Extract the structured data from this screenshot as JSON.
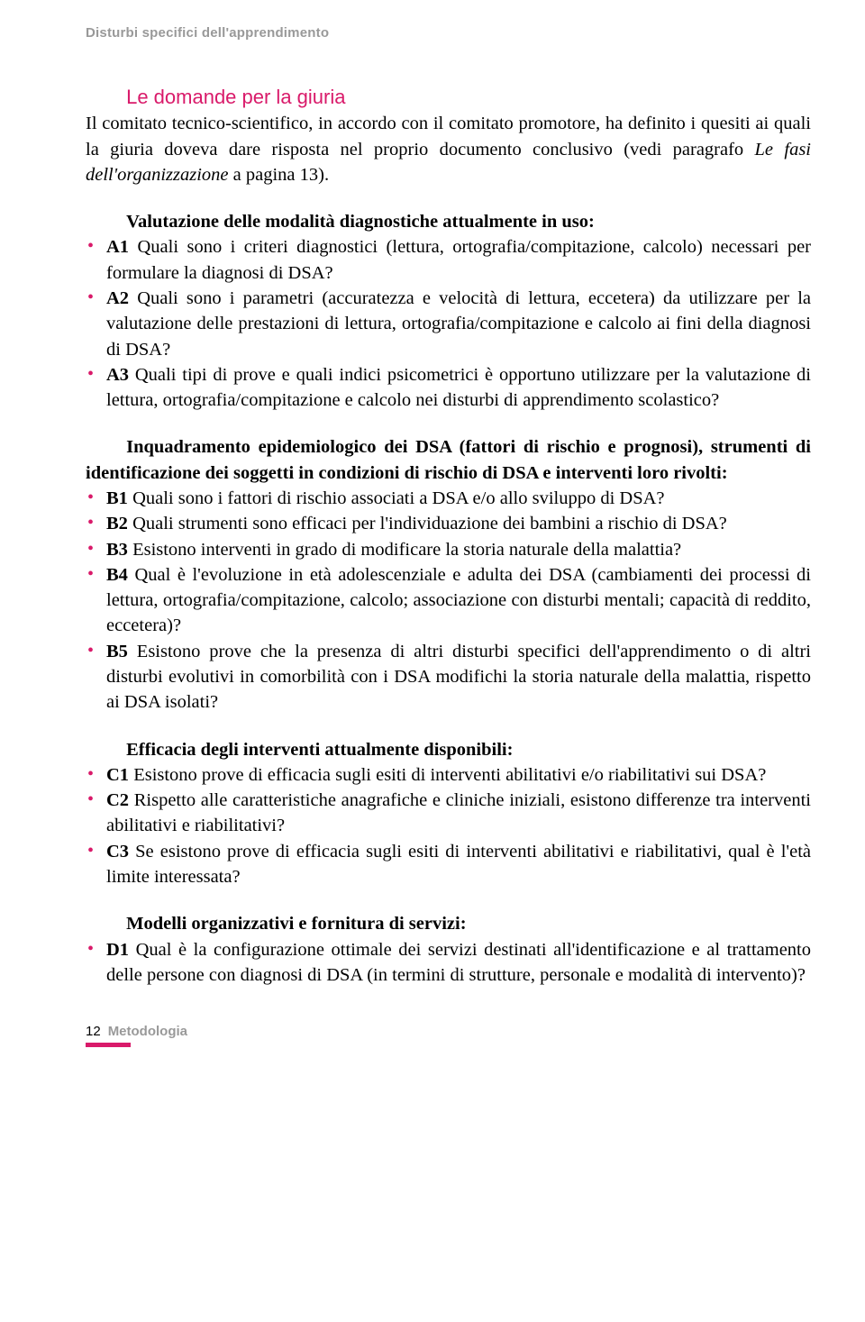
{
  "colors": {
    "accent": "#d91a6a",
    "muted": "#999999",
    "text": "#000000",
    "background": "#ffffff"
  },
  "typography": {
    "body_font": "Adobe Caslon Pro, Caslon, Georgia, serif",
    "heading_font": "Helvetica Neue, Arial, sans-serif",
    "body_size_pt": 15,
    "heading_size_pt": 16,
    "line_height": 1.38
  },
  "header": {
    "running_title": "Disturbi specifici dell'apprendimento"
  },
  "section": {
    "title": "Le domande per la giuria",
    "intro_part1": "Il comitato tecnico-scientifico, in accordo con il comitato promotore, ha definito i quesiti ai quali la giuria doveva dare risposta nel proprio documento conclusivo (vedi paragrafo ",
    "intro_italic": "Le fasi dell'organizzazione",
    "intro_part2": " a pagina 13)."
  },
  "groups": [
    {
      "lead": "Valutazione delle modalità diagnostiche attualmente in uso:",
      "lead_bold": true,
      "items": [
        {
          "code": "A1",
          "text": " Quali sono i criteri diagnostici (lettura, ortografia/compitazione, calcolo) necessari per formulare la diagnosi di DSA?"
        },
        {
          "code": "A2",
          "text": " Quali sono i parametri (accuratezza e velocità di lettura, eccetera) da utilizzare per la valutazione delle prestazioni di lettura, ortografia/compitazione e calcolo ai fini della diagnosi di DSA?"
        },
        {
          "code": "A3",
          "text": " Quali tipi di prove e quali indici psicometrici è opportuno utilizzare per la valutazione di lettura, ortografia/compitazione e calcolo nei disturbi di apprendimento scolastico?"
        }
      ]
    },
    {
      "lead": "Inquadramento epidemiologico dei DSA (fattori di rischio e prognosi), strumenti di identificazione dei soggetti in condizioni di rischio di DSA e interventi loro rivolti:",
      "lead_bold": true,
      "items": [
        {
          "code": "B1",
          "text": " Quali sono i fattori di rischio associati a DSA e/o allo sviluppo di DSA?"
        },
        {
          "code": "B2",
          "text": " Quali strumenti sono efficaci per l'individuazione dei bambini a rischio di DSA?"
        },
        {
          "code": "B3",
          "text": " Esistono interventi in grado di modificare la storia naturale della malattia?"
        },
        {
          "code": "B4",
          "text": " Qual è l'evoluzione in età adolescenziale e adulta dei DSA (cambiamenti dei processi di lettura, ortografia/compitazione, calcolo; associazione con disturbi mentali; capacità di reddito, eccetera)?"
        },
        {
          "code": "B5",
          "text": " Esistono prove che la presenza di altri disturbi specifici dell'apprendimento o di altri disturbi evolutivi in comorbilità con i DSA modifichi la storia naturale della malattia, rispetto ai DSA isolati?"
        }
      ]
    },
    {
      "lead": "Efficacia degli interventi attualmente disponibili:",
      "lead_bold": true,
      "items": [
        {
          "code": "C1",
          "text": " Esistono prove di efficacia sugli esiti di interventi abilitativi e/o riabilitativi sui DSA?"
        },
        {
          "code": "C2",
          "text": " Rispetto alle caratteristiche anagrafiche e cliniche iniziali, esistono differenze tra interventi abilitativi e riabilitativi?"
        },
        {
          "code": "C3",
          "text": " Se esistono prove di efficacia sugli esiti di interventi abilitativi e riabilitativi, qual è l'età limite interessata?"
        }
      ]
    },
    {
      "lead": "Modelli organizzativi e fornitura di servizi:",
      "lead_bold": true,
      "items": [
        {
          "code": "D1",
          "text": " Qual è la configurazione ottimale dei servizi destinati all'identificazione e al trattamento delle persone con diagnosi di DSA (in termini di strutture, personale e modalità di intervento)?"
        }
      ]
    }
  ],
  "footer": {
    "page_number": "12",
    "label": "Metodologia"
  }
}
